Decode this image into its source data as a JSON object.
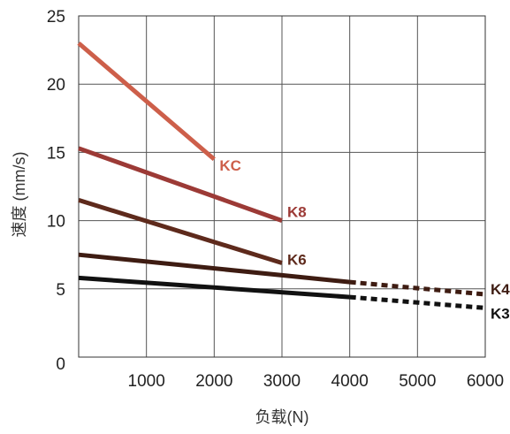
{
  "chart_data": {
    "type": "line",
    "title": "",
    "xlabel": "负载(N)",
    "ylabel": "速度 (mm/s)",
    "xlim": [
      0,
      6000
    ],
    "ylim": [
      0,
      25
    ],
    "xticks": [
      {
        "value": 1000,
        "label": "1000"
      },
      {
        "value": 2000,
        "label": "2000"
      },
      {
        "value": 3000,
        "label": "3000"
      },
      {
        "value": 4000,
        "label": "4000"
      },
      {
        "value": 5000,
        "label": "5000"
      },
      {
        "value": 6000,
        "label": "6000"
      }
    ],
    "yticks": [
      {
        "value": 0,
        "label": "0"
      },
      {
        "value": 5,
        "label": "5"
      },
      {
        "value": 10,
        "label": "10"
      },
      {
        "value": 15,
        "label": "15"
      },
      {
        "value": 20,
        "label": "20"
      },
      {
        "value": 25,
        "label": "25"
      }
    ],
    "grid": true,
    "legend": "none",
    "series": [
      {
        "name": "KC",
        "color": "#cd5f4a",
        "solid": [
          {
            "x": 0,
            "y": 23.0
          },
          {
            "x": 2000,
            "y": 14.5
          }
        ],
        "dashed": []
      },
      {
        "name": "K8",
        "color": "#9c3a36",
        "solid": [
          {
            "x": 0,
            "y": 15.3
          },
          {
            "x": 3000,
            "y": 10.0
          }
        ],
        "dashed": []
      },
      {
        "name": "K6",
        "color": "#5e2a1c",
        "solid": [
          {
            "x": 0,
            "y": 11.5
          },
          {
            "x": 3000,
            "y": 6.9
          }
        ],
        "dashed": []
      },
      {
        "name": "K4",
        "color": "#3e1c12",
        "solid": [
          {
            "x": 0,
            "y": 7.5
          },
          {
            "x": 4000,
            "y": 5.5
          }
        ],
        "dashed": [
          {
            "x": 4000,
            "y": 5.5
          },
          {
            "x": 6000,
            "y": 4.6
          }
        ]
      },
      {
        "name": "K3",
        "color": "#111111",
        "solid": [
          {
            "x": 0,
            "y": 5.8
          },
          {
            "x": 4000,
            "y": 4.4
          }
        ],
        "dashed": [
          {
            "x": 4000,
            "y": 4.4
          },
          {
            "x": 6000,
            "y": 3.6
          }
        ]
      }
    ]
  }
}
